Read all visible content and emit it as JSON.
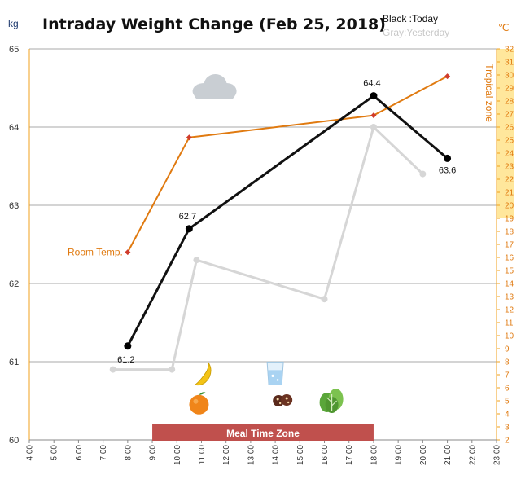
{
  "chart_data": {
    "type": "line",
    "title": "Intraday Weight Change (Feb 25, 2018)",
    "legend": {
      "today": "Black :Today",
      "yesterday": "Gray:Yesterday"
    },
    "y_left": {
      "unit": "kg",
      "range": [
        60,
        65
      ],
      "ticks": [
        "60",
        "61",
        "62",
        "63",
        "64",
        "65"
      ]
    },
    "y_right": {
      "unit": "℃",
      "range": [
        2,
        32
      ],
      "ticks": [
        "2",
        "3",
        "4",
        "5",
        "6",
        "7",
        "8",
        "9",
        "10",
        "11",
        "12",
        "13",
        "14",
        "15",
        "16",
        "17",
        "18",
        "19",
        "20",
        "21",
        "22",
        "23",
        "24",
        "25",
        "26",
        "27",
        "28",
        "29",
        "30",
        "31",
        "32"
      ],
      "zone_label": "Tropical zone",
      "zone_range": [
        19,
        32
      ]
    },
    "x_ticks": [
      "4:00",
      "5:00",
      "6:00",
      "7:00",
      "8:00",
      "9:00",
      "10:00",
      "11:00",
      "12:00",
      "13:00",
      "14:00",
      "15:00",
      "16:00",
      "17:00",
      "18:00",
      "19:00",
      "20:00",
      "21:00",
      "22:00",
      "23:00"
    ],
    "x_range": [
      4,
      23
    ],
    "series": [
      {
        "name": "Today",
        "color": "#111111",
        "axis": "left",
        "points": [
          {
            "x": 8.0,
            "y": 61.2,
            "label": "61.2"
          },
          {
            "x": 10.5,
            "y": 62.7,
            "label": "62.7"
          },
          {
            "x": 18.0,
            "y": 64.4,
            "label": "64.4"
          },
          {
            "x": 21.0,
            "y": 63.6,
            "label": "63.6"
          }
        ]
      },
      {
        "name": "Yesterday",
        "color": "#d6d6d6",
        "axis": "left",
        "points": [
          {
            "x": 7.4,
            "y": 60.9
          },
          {
            "x": 9.8,
            "y": 60.9
          },
          {
            "x": 10.8,
            "y": 62.3
          },
          {
            "x": 16.0,
            "y": 61.8
          },
          {
            "x": 18.0,
            "y": 64.0
          },
          {
            "x": 20.0,
            "y": 63.4
          }
        ]
      },
      {
        "name": "Room Temp.",
        "color": "#e07a10",
        "axis": "right",
        "label": "Room Temp.",
        "points": [
          {
            "x": 8.0,
            "y": 16.4
          },
          {
            "x": 10.5,
            "y": 25.2
          },
          {
            "x": 18.0,
            "y": 26.9
          },
          {
            "x": 21.0,
            "y": 29.9
          }
        ]
      }
    ],
    "meal_zone": {
      "label": "Meal Time Zone",
      "start": 9,
      "end": 18,
      "color": "#c0504d"
    },
    "icons": [
      {
        "name": "cloud-icon",
        "x": 11.5,
        "y": 64.5
      },
      {
        "name": "banana-icon",
        "x": 11.0,
        "y": 60.85
      },
      {
        "name": "orange-icon",
        "x": 10.9,
        "y": 60.45
      },
      {
        "name": "water-glass-icon",
        "x": 14.0,
        "y": 60.85
      },
      {
        "name": "cookie-icon",
        "x": 14.3,
        "y": 60.5
      },
      {
        "name": "lettuce-icon",
        "x": 16.3,
        "y": 60.5
      }
    ]
  }
}
